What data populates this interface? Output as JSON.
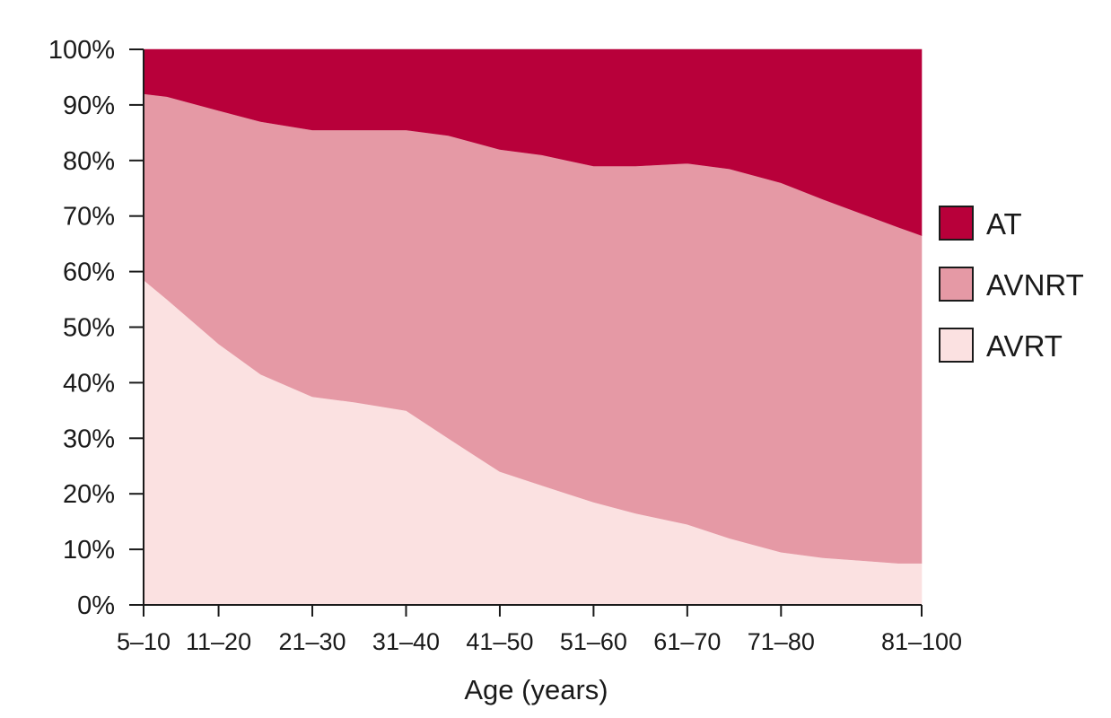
{
  "chart_data": {
    "type": "area",
    "stacked": true,
    "normalized": true,
    "title": "",
    "xlabel": "Age (years)",
    "ylabel": "",
    "ylim": [
      0,
      100
    ],
    "y_ticks": [
      "0%",
      "10%",
      "20%",
      "30%",
      "40%",
      "50%",
      "60%",
      "70%",
      "80%",
      "90%",
      "100%"
    ],
    "x_tick_labels": [
      "5–10",
      "11–20",
      "21–30",
      "31–40",
      "41–50",
      "51–60",
      "61–70",
      "71–80",
      "81–100"
    ],
    "x_tick_positions": [
      7.5,
      15.5,
      25.5,
      35.5,
      45.5,
      55.5,
      65.5,
      75.5,
      90.5
    ],
    "xlim": [
      7.5,
      90.5
    ],
    "grid": false,
    "legend_position": "right",
    "series": [
      {
        "name": "AVRT",
        "color": "#fbe1e1",
        "x": [
          7.5,
          10,
          15.5,
          20,
          25.5,
          30,
          35.5,
          40,
          45.5,
          50,
          55.5,
          60,
          65.5,
          70,
          75.5,
          80,
          84,
          88,
          90.5
        ],
        "values": [
          58.5,
          55,
          47,
          41.5,
          37.5,
          36.5,
          35,
          30,
          24,
          21.5,
          18.5,
          16.5,
          14.5,
          12,
          9.5,
          8.5,
          8,
          7.5,
          7.5
        ]
      },
      {
        "name": "AVNRT",
        "color": "#e599a5",
        "x": [
          7.5,
          10,
          15.5,
          20,
          25.5,
          30,
          35.5,
          40,
          45.5,
          50,
          55.5,
          60,
          65.5,
          70,
          75.5,
          80,
          84,
          88,
          90.5
        ],
        "values": [
          33.5,
          36.5,
          42,
          45.5,
          48,
          49,
          50.5,
          54.5,
          58,
          59.5,
          60.5,
          62.5,
          65,
          66.5,
          66.5,
          64.5,
          62.5,
          60.5,
          59
        ]
      },
      {
        "name": "AT",
        "color": "#b8003a",
        "x": [
          7.5,
          10,
          15.5,
          20,
          25.5,
          30,
          35.5,
          40,
          45.5,
          50,
          55.5,
          60,
          65.5,
          70,
          75.5,
          80,
          84,
          88,
          90.5
        ],
        "values": [
          8,
          8.5,
          11,
          13,
          14.5,
          14.5,
          14.5,
          15.5,
          18,
          19,
          21,
          21,
          20.5,
          21.5,
          24,
          27,
          29.5,
          32,
          33.5
        ]
      }
    ],
    "legend": [
      {
        "label": "AT",
        "color": "#b8003a"
      },
      {
        "label": "AVNRT",
        "color": "#e599a5"
      },
      {
        "label": "AVRT",
        "color": "#fbe1e1"
      }
    ]
  }
}
